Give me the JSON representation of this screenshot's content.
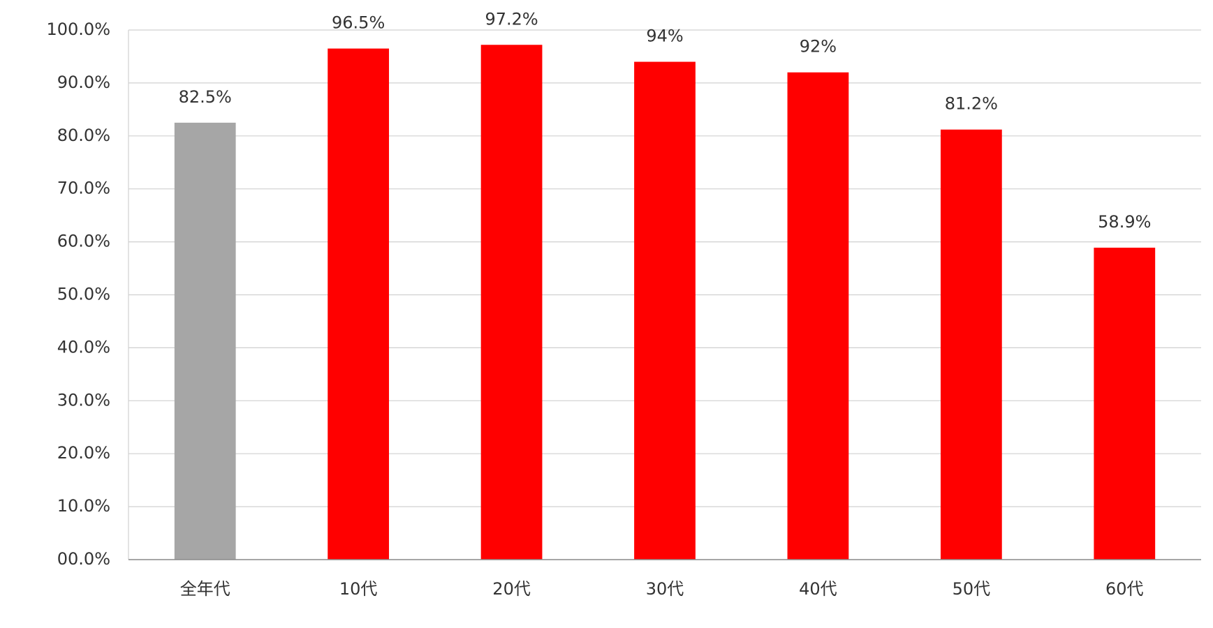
{
  "chart_data": {
    "type": "bar",
    "categories": [
      "全年代",
      "10代",
      "20代",
      "30代",
      "40代",
      "50代",
      "60代"
    ],
    "values": [
      82.5,
      96.5,
      97.2,
      94,
      92,
      81.2,
      58.9
    ],
    "value_labels": [
      "82.5%",
      "96.5%",
      "97.2%",
      "94%",
      "92%",
      "81.2%",
      "58.9%"
    ],
    "colors": [
      "#a6a6a6",
      "#ff0000",
      "#ff0000",
      "#ff0000",
      "#ff0000",
      "#ff0000",
      "#ff0000"
    ],
    "ylim": [
      0,
      100
    ],
    "yticks": [
      {
        "value": 0,
        "label": "00.0%"
      },
      {
        "value": 10,
        "label": "10.0%"
      },
      {
        "value": 20,
        "label": "20.0%"
      },
      {
        "value": 30,
        "label": "30.0%"
      },
      {
        "value": 40,
        "label": "40.0%"
      },
      {
        "value": 50,
        "label": "50.0%"
      },
      {
        "value": 60,
        "label": "60.0%"
      },
      {
        "value": 70,
        "label": "70.0%"
      },
      {
        "value": 80,
        "label": "80.0%"
      },
      {
        "value": 90,
        "label": "90.0%"
      },
      {
        "value": 100,
        "label": "100.0%"
      }
    ],
    "grid": true
  }
}
